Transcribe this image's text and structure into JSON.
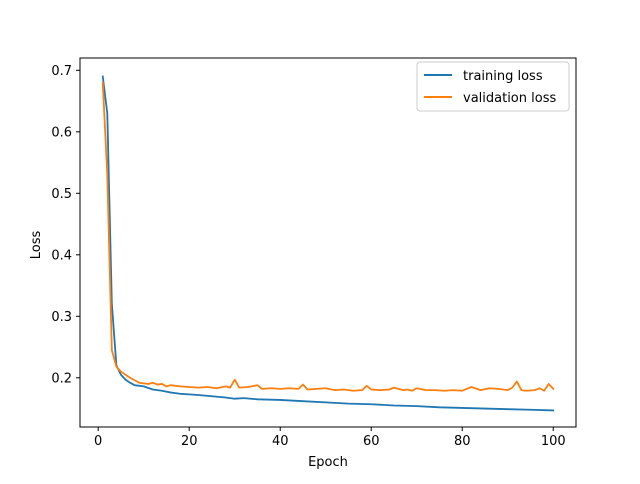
{
  "chart_data": {
    "type": "line",
    "title": "",
    "xlabel": "Epoch",
    "ylabel": "Loss",
    "xlim": [
      -4,
      105
    ],
    "ylim": [
      0.12,
      0.72
    ],
    "xticks": [
      0,
      20,
      40,
      60,
      80,
      100
    ],
    "yticks": [
      0.2,
      0.3,
      0.4,
      0.5,
      0.6,
      0.7
    ],
    "grid": false,
    "legend_position": "top-right",
    "series": [
      {
        "name": "training loss",
        "color": "#1f77b4",
        "x": [
          1,
          2,
          3,
          4,
          5,
          6,
          7,
          8,
          10,
          12,
          14,
          16,
          18,
          20,
          22,
          25,
          28,
          30,
          32,
          35,
          40,
          45,
          50,
          55,
          60,
          65,
          70,
          75,
          80,
          85,
          90,
          95,
          100
        ],
        "y": [
          0.69,
          0.63,
          0.32,
          0.22,
          0.205,
          0.197,
          0.192,
          0.188,
          0.186,
          0.181,
          0.179,
          0.176,
          0.174,
          0.173,
          0.172,
          0.17,
          0.168,
          0.166,
          0.167,
          0.165,
          0.164,
          0.162,
          0.16,
          0.158,
          0.157,
          0.155,
          0.154,
          0.152,
          0.151,
          0.15,
          0.149,
          0.148,
          0.147
        ]
      },
      {
        "name": "validation loss",
        "color": "#ff7f0e",
        "x": [
          1,
          2,
          3,
          4,
          5,
          6,
          7,
          8,
          9,
          10,
          11,
          12,
          13,
          14,
          15,
          16,
          18,
          20,
          22,
          24,
          26,
          28,
          29,
          30,
          31,
          33,
          35,
          36,
          38,
          40,
          42,
          44,
          45,
          46,
          48,
          50,
          52,
          54,
          56,
          58,
          59,
          60,
          62,
          64,
          65,
          67,
          68,
          69,
          70,
          72,
          74,
          76,
          78,
          80,
          82,
          84,
          86,
          88,
          90,
          91,
          92,
          93,
          94,
          96,
          97,
          98,
          99,
          100
        ],
        "y": [
          0.68,
          0.53,
          0.245,
          0.218,
          0.21,
          0.205,
          0.2,
          0.196,
          0.192,
          0.191,
          0.19,
          0.192,
          0.189,
          0.19,
          0.186,
          0.188,
          0.186,
          0.185,
          0.184,
          0.185,
          0.183,
          0.186,
          0.184,
          0.197,
          0.184,
          0.185,
          0.188,
          0.182,
          0.183,
          0.182,
          0.183,
          0.182,
          0.189,
          0.181,
          0.182,
          0.183,
          0.18,
          0.181,
          0.179,
          0.18,
          0.187,
          0.181,
          0.18,
          0.181,
          0.184,
          0.18,
          0.181,
          0.179,
          0.183,
          0.18,
          0.18,
          0.179,
          0.18,
          0.179,
          0.185,
          0.18,
          0.183,
          0.182,
          0.18,
          0.184,
          0.194,
          0.18,
          0.179,
          0.18,
          0.183,
          0.179,
          0.19,
          0.182
        ]
      }
    ]
  }
}
